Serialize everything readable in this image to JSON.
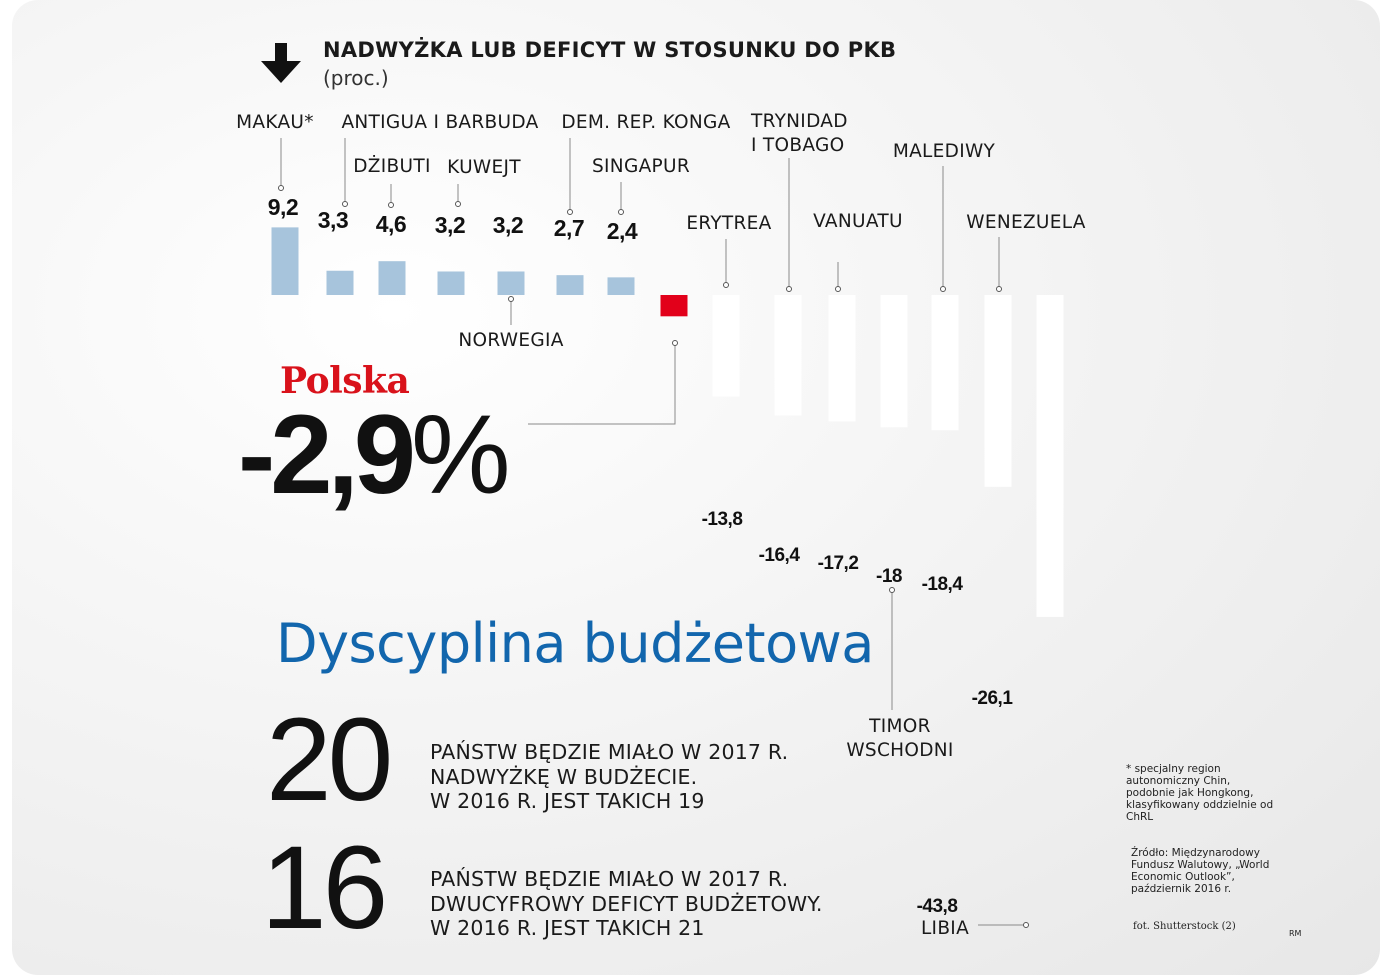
{
  "chart_data": {
    "type": "bar",
    "title": "NADWYŻKA LUB DEFICYT W STOSUNKU DO PKB",
    "subtitle": "(proc.)",
    "value_suffix": "%",
    "categories": [
      "MAKAU*",
      "DŻIBUTI",
      "ANTIGUA I BARBUDA",
      "KUWEJT",
      "NORWEGIA",
      "DEM. REP. KONGA",
      "SINGAPUR",
      "Polska",
      "ERYTREA",
      "TRYNIDAD I TOBAGO",
      "VANUATU",
      "TIMOR WSCHODNI",
      "MALEDIWY",
      "WENEZUELA",
      "LIBIA"
    ],
    "values": [
      9.2,
      4.6,
      3.3,
      3.2,
      3.2,
      2.7,
      2.4,
      -2.9,
      -13.8,
      -16.4,
      -17.2,
      -18,
      -18.4,
      -26.1,
      -43.8
    ],
    "value_labels": [
      "9,2",
      "4,6",
      "3,3",
      "3,2",
      "3,2",
      "2,7",
      "2,4",
      "-2,9",
      "-13,8",
      "-16,4",
      "-17,2",
      "-18",
      "-18,4",
      "-26,1",
      "-43,8"
    ],
    "ylim": [
      -43.8,
      9.2
    ],
    "colors": {
      "positive": "#a7c4dc",
      "highlight": "#e2001a",
      "negative": "#ffffff",
      "leader": "#8a8a8a"
    },
    "grid": false,
    "legend": "none"
  },
  "header": {
    "arrow_icon": "arrow-down-icon",
    "title": "NADWYŻKA LUB DEFICYT W STOSUNKU DO PKB",
    "unit": "(proc.)"
  },
  "polska": {
    "label": "Polska",
    "value": "-2,9",
    "percent_sign": "%"
  },
  "headline": "Dyscyplina budżetowa",
  "stats": [
    {
      "number": "20",
      "lines": [
        "PAŃSTW BĘDZIE MIAŁO W 2017 R.",
        "NADWYŻKĘ W BUDŻECIE.",
        "W 2016 R. JEST TAKICH 19"
      ]
    },
    {
      "number": "16",
      "lines": [
        "PAŃSTW BĘDZIE MIAŁO W 2017 R.",
        "DWUCYFROWY DEFICYT BUDŻETOWY.",
        "W 2016 R. JEST TAKICH 21"
      ]
    }
  ],
  "footnote": "* specjalny region autonomiczny Chin, podobnie jak Hongkong, klasyfikowany oddzielnie od ChRL",
  "source": "Źródło: Międzynarodowy Fundusz Walutowy, „World Economic Outlook”, październik 2016 r.",
  "photo_credit": "fot. Shutterstock (2)",
  "author": "RM",
  "colors": {
    "accent_blue": "#1266ad",
    "accent_red": "#d9121b"
  }
}
